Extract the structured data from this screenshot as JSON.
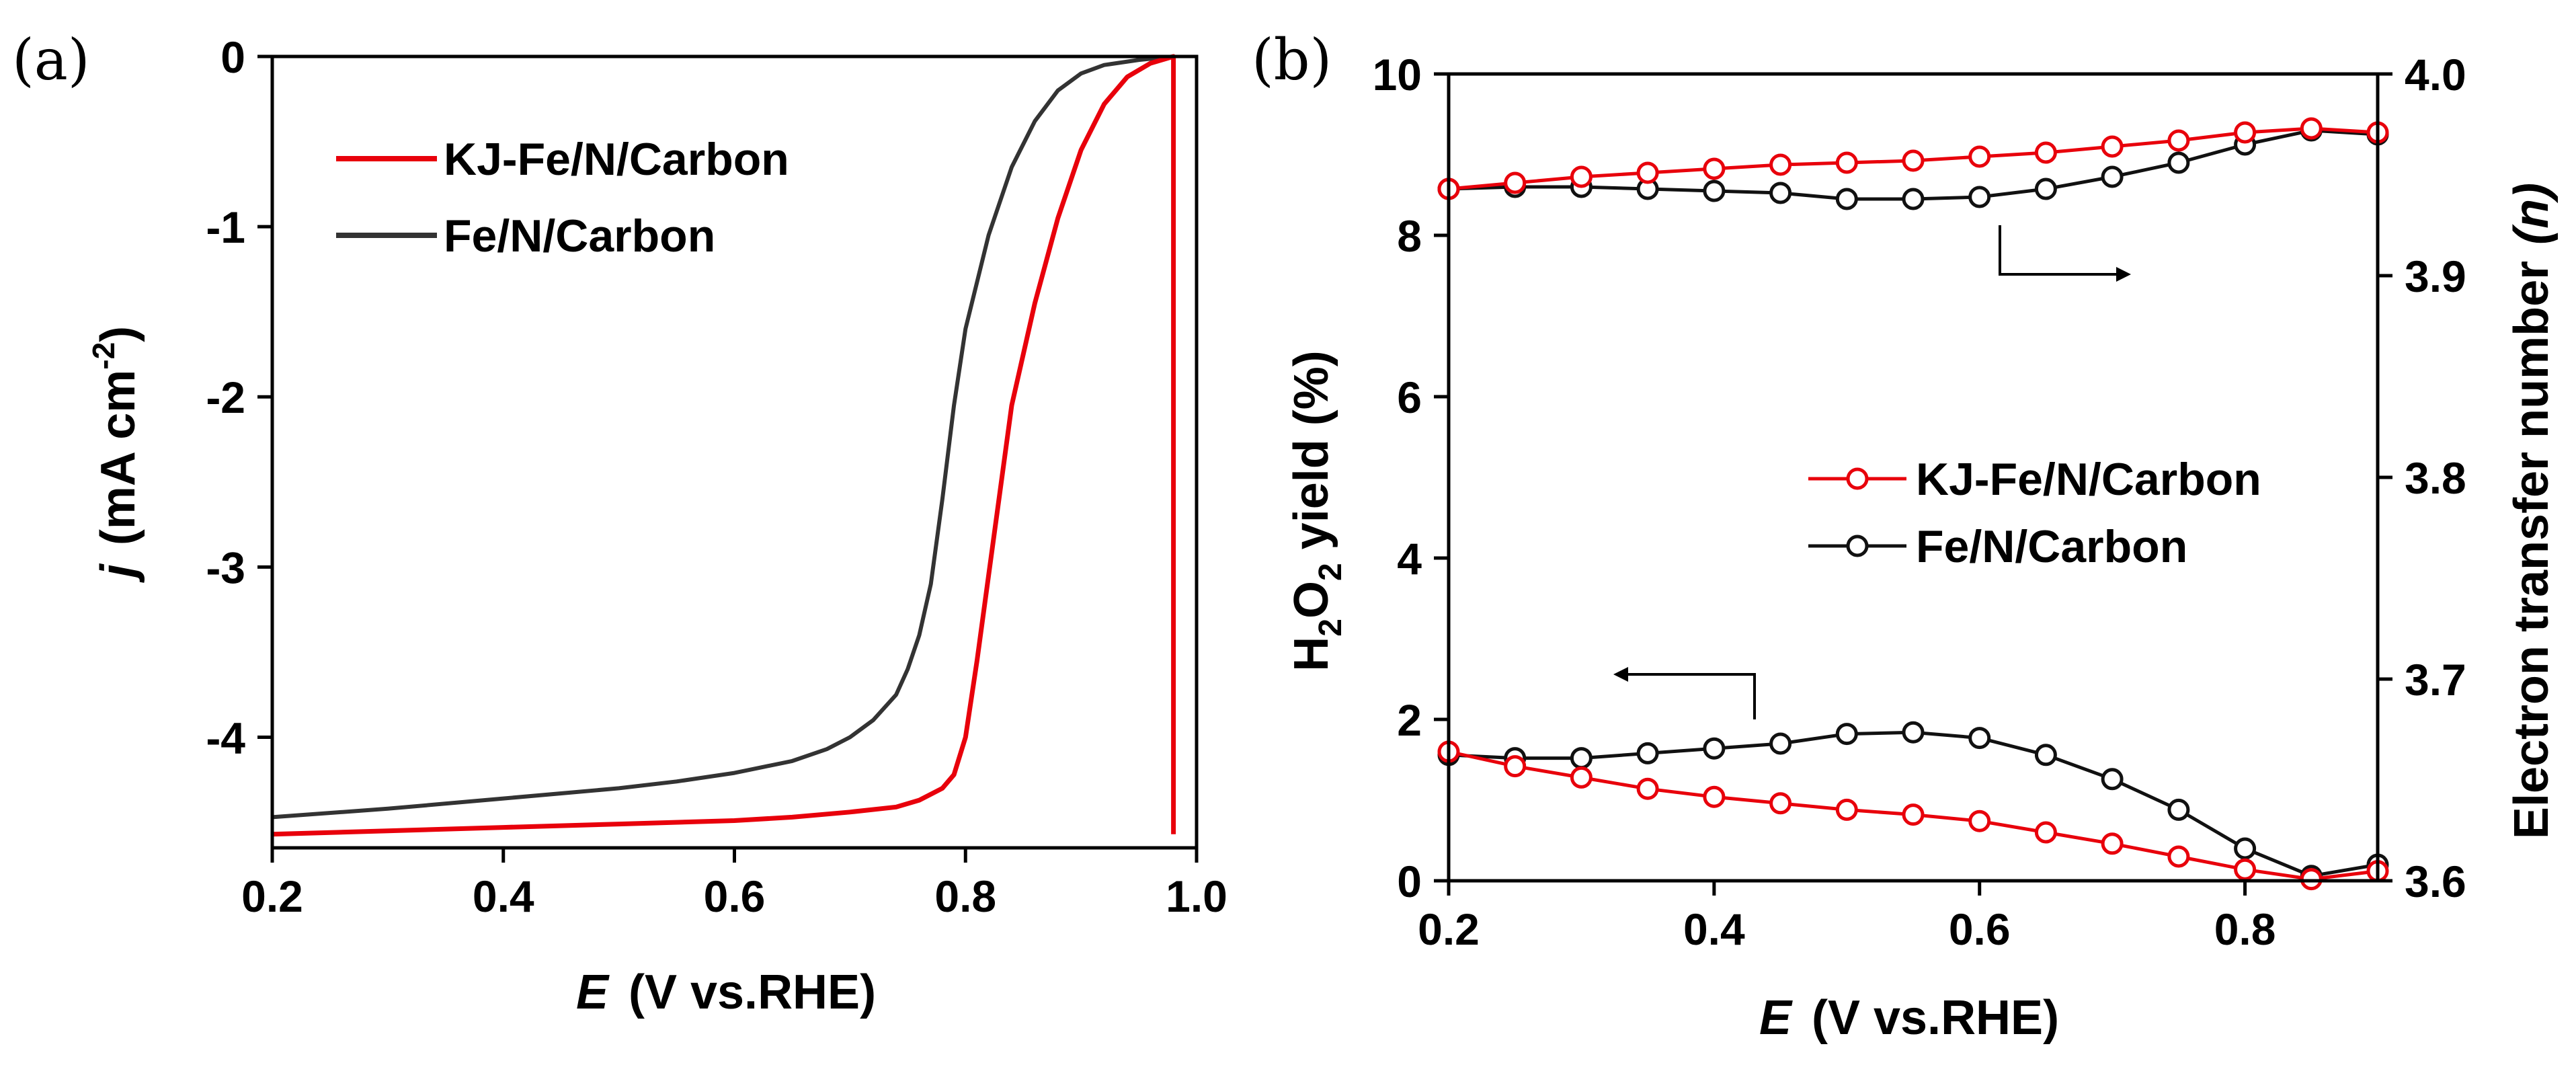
{
  "chart_data": [
    {
      "panel_label": "(a)",
      "type": "line",
      "xlabel_italic": "E",
      "xlabel_rest": "(V vs.RHE)",
      "ylabel_italic": "j",
      "ylabel_rest": "(mA cm",
      "ylabel_sup": "-2",
      "ylabel_close": ")",
      "xlim": [
        0.2,
        1.0
      ],
      "ylim": [
        -4.65,
        0
      ],
      "xticks": [
        "0.2",
        "0.4",
        "0.6",
        "0.8",
        "1.0"
      ],
      "xtick_values": [
        0.2,
        0.4,
        0.6,
        0.8,
        1.0
      ],
      "yticks": [
        "0",
        "-1",
        "-2",
        "-3",
        "-4"
      ],
      "ytick_values": [
        0,
        -1,
        -2,
        -3,
        -4
      ],
      "legend_position": "top-left",
      "series": [
        {
          "name": "KJ-Fe/N/Carbon",
          "color": "#e8000b",
          "x": [
            0.2,
            0.3,
            0.4,
            0.5,
            0.6,
            0.65,
            0.7,
            0.74,
            0.76,
            0.78,
            0.79,
            0.8,
            0.81,
            0.82,
            0.83,
            0.84,
            0.86,
            0.88,
            0.9,
            0.92,
            0.94,
            0.96,
            0.98,
            0.98
          ],
          "y": [
            -4.57,
            -4.55,
            -4.53,
            -4.51,
            -4.49,
            -4.47,
            -4.44,
            -4.41,
            -4.37,
            -4.3,
            -4.22,
            -4.0,
            -3.55,
            -3.05,
            -2.55,
            -2.05,
            -1.45,
            -0.95,
            -0.55,
            -0.28,
            -0.12,
            -0.04,
            0.0,
            -4.57
          ]
        },
        {
          "name": "Fe/N/Carbon",
          "color": "#333333",
          "x": [
            0.2,
            0.3,
            0.4,
            0.5,
            0.55,
            0.6,
            0.65,
            0.68,
            0.7,
            0.72,
            0.74,
            0.75,
            0.76,
            0.77,
            0.78,
            0.79,
            0.8,
            0.82,
            0.84,
            0.86,
            0.88,
            0.9,
            0.92,
            0.95,
            0.98
          ],
          "y": [
            -4.47,
            -4.42,
            -4.36,
            -4.3,
            -4.26,
            -4.21,
            -4.14,
            -4.07,
            -4.0,
            -3.9,
            -3.75,
            -3.6,
            -3.4,
            -3.1,
            -2.6,
            -2.05,
            -1.6,
            -1.05,
            -0.65,
            -0.38,
            -0.2,
            -0.1,
            -0.05,
            -0.02,
            0.0
          ]
        }
      ]
    },
    {
      "panel_label": "(b)",
      "type": "line",
      "xlabel_italic": "E",
      "xlabel_rest": "(V vs.RHE)",
      "ylabel_left_prefix": "H",
      "ylabel_left_sub1": "2",
      "ylabel_left_mid": "O",
      "ylabel_left_sub2": "2",
      "ylabel_left_rest": "yield  (%)",
      "ylabel_right": "Electron transfer number",
      "ylabel_right_italic": "(n)",
      "xlim": [
        0.2,
        0.9
      ],
      "ylim_left": [
        0,
        10
      ],
      "ylim_right": [
        3.6,
        4.0
      ],
      "xticks": [
        "0.2",
        "0.4",
        "0.6",
        "0.8"
      ],
      "xtick_values": [
        0.2,
        0.4,
        0.6,
        0.8
      ],
      "yticks_left": [
        "0",
        "2",
        "4",
        "6",
        "8",
        "10"
      ],
      "ytick_left_values": [
        0,
        2,
        4,
        6,
        8,
        10
      ],
      "yticks_right": [
        "3.6",
        "3.7",
        "3.8",
        "3.9",
        "4.0"
      ],
      "ytick_right_values": [
        3.6,
        3.7,
        3.8,
        3.9,
        4.0
      ],
      "legend_position": "center-right",
      "series": [
        {
          "name": "KJ-Fe/N/Carbon",
          "axis": "left",
          "color": "#e8000b",
          "x": [
            0.2,
            0.25,
            0.3,
            0.35,
            0.4,
            0.45,
            0.5,
            0.55,
            0.6,
            0.65,
            0.7,
            0.75,
            0.8,
            0.85,
            0.9
          ],
          "y": [
            1.6,
            1.42,
            1.28,
            1.14,
            1.04,
            0.96,
            0.88,
            0.82,
            0.74,
            0.6,
            0.46,
            0.3,
            0.14,
            0.02,
            0.12
          ]
        },
        {
          "name": "Fe/N/Carbon",
          "axis": "left",
          "color": "#111111",
          "x": [
            0.2,
            0.25,
            0.3,
            0.35,
            0.4,
            0.45,
            0.5,
            0.55,
            0.6,
            0.65,
            0.7,
            0.75,
            0.8,
            0.85,
            0.9
          ],
          "y": [
            1.56,
            1.52,
            1.52,
            1.58,
            1.64,
            1.7,
            1.82,
            1.84,
            1.77,
            1.56,
            1.26,
            0.88,
            0.4,
            0.06,
            0.2
          ]
        },
        {
          "name": "KJ-Fe/N/Carbon",
          "axis": "right",
          "color": "#e8000b",
          "x": [
            0.2,
            0.25,
            0.3,
            0.35,
            0.4,
            0.45,
            0.5,
            0.55,
            0.6,
            0.65,
            0.7,
            0.75,
            0.8,
            0.85,
            0.9
          ],
          "y": [
            3.943,
            3.946,
            3.949,
            3.951,
            3.953,
            3.955,
            3.956,
            3.957,
            3.959,
            3.961,
            3.964,
            3.967,
            3.971,
            3.973,
            3.971
          ]
        },
        {
          "name": "Fe/N/Carbon",
          "axis": "right",
          "color": "#111111",
          "x": [
            0.2,
            0.25,
            0.3,
            0.35,
            0.4,
            0.45,
            0.5,
            0.55,
            0.6,
            0.65,
            0.7,
            0.75,
            0.8,
            0.85,
            0.9
          ],
          "y": [
            3.943,
            3.944,
            3.944,
            3.943,
            3.942,
            3.941,
            3.938,
            3.938,
            3.939,
            3.943,
            3.949,
            3.956,
            3.965,
            3.972,
            3.97
          ]
        }
      ]
    }
  ]
}
